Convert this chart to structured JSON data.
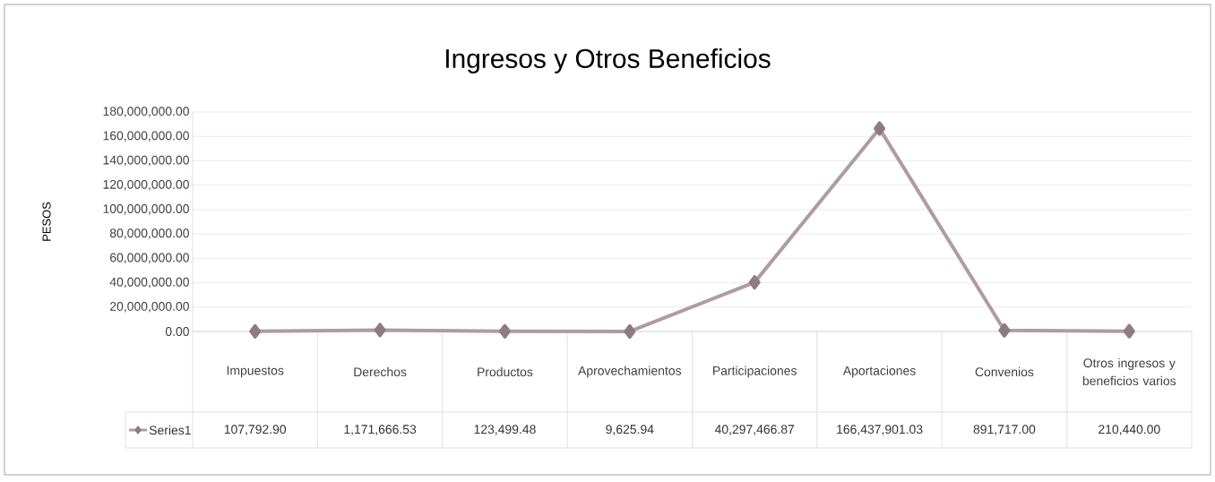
{
  "chart_data": {
    "type": "line",
    "title": "Ingresos y Otros Beneficios",
    "ylabel": "PESOS",
    "categories": [
      "Impuestos",
      "Derechos",
      "Productos",
      "Aprovechamientos",
      "Participaciones",
      "Aportaciones",
      "Convenios",
      "Otros ingresos y beneficios varios"
    ],
    "series": [
      {
        "name": "Series1",
        "color": "#b09ba3",
        "values": [
          107792.9,
          1171666.53,
          123499.48,
          9625.94,
          40297466.87,
          166437901.03,
          891717.0,
          210440.0
        ],
        "value_labels": [
          "107,792.90",
          "1,171,666.53",
          "123,499.48",
          "9,625.94",
          "40,297,466.87",
          "166,437,901.03",
          "891,717.00",
          "210,440.00"
        ]
      }
    ],
    "ylim": [
      0,
      180000000
    ],
    "yticks": [
      {
        "value": 0,
        "label": "0.00"
      },
      {
        "value": 20000000,
        "label": "20,000,000.00"
      },
      {
        "value": 40000000,
        "label": "40,000,000.00"
      },
      {
        "value": 60000000,
        "label": "60,000,000.00"
      },
      {
        "value": 80000000,
        "label": "80,000,000.00"
      },
      {
        "value": 100000000,
        "label": "100,000,000.00"
      },
      {
        "value": 120000000,
        "label": "120,000,000.00"
      },
      {
        "value": 140000000,
        "label": "140,000,000.00"
      },
      {
        "value": 160000000,
        "label": "160,000,000.00"
      },
      {
        "value": 180000000,
        "label": "180,000,000.00"
      }
    ],
    "grid": "y",
    "legend": "bottom left",
    "marker": "diamond",
    "line_style": "solid"
  }
}
